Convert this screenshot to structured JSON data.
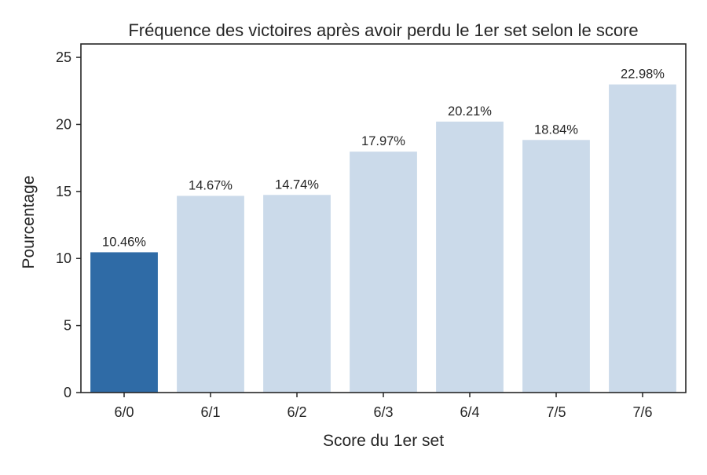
{
  "chart_data": {
    "type": "bar",
    "title": "Fréquence des victoires après avoir perdu le 1er set selon le score",
    "xlabel": "Score du 1er set",
    "ylabel": "Pourcentage",
    "categories": [
      "6/0",
      "6/1",
      "6/2",
      "6/3",
      "6/4",
      "7/5",
      "7/6"
    ],
    "values": [
      10.46,
      14.67,
      14.74,
      17.97,
      20.21,
      18.84,
      22.98
    ],
    "data_labels": [
      "10.46%",
      "14.67%",
      "14.74%",
      "17.97%",
      "20.21%",
      "18.84%",
      "22.98%"
    ],
    "ylim": [
      0,
      26
    ],
    "yticks": [
      0,
      5,
      10,
      15,
      20,
      25
    ],
    "grid": false,
    "highlight_index": 0,
    "colors": {
      "highlight": "#2f6ba6",
      "bar": "#cbdaea",
      "axis": "#262626",
      "text": "#262626"
    }
  }
}
